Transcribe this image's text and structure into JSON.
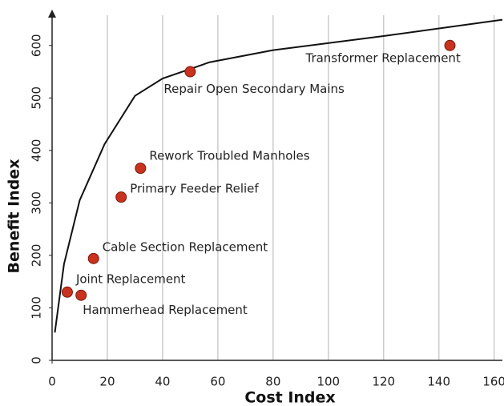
{
  "chart_data": {
    "type": "scatter",
    "x_label": "Cost Index",
    "y_label": "Benefit Index",
    "xlim": [
      0,
      163
    ],
    "ylim": [
      0,
      650
    ],
    "xticks": [
      0,
      20,
      40,
      60,
      80,
      100,
      120,
      140,
      160
    ],
    "yticks": [
      0,
      100,
      200,
      300,
      400,
      500,
      600
    ],
    "grid": true,
    "color": "#c8321e",
    "curve_color": "#111111",
    "curve": {
      "x": [
        1,
        4.3,
        10,
        19,
        30,
        40,
        57,
        80,
        120,
        163
      ],
      "values": [
        53,
        183,
        305,
        412,
        504,
        537,
        568,
        591,
        618,
        649
      ]
    },
    "labels": [
      "Transformer Replacement",
      "Repair Open Secondary Mains",
      "Rework Troubled Manholes",
      "Primary Feeder Relief",
      "Cable Section Replacement",
      "Joint Replacement",
      "Hammerhead Replacement"
    ],
    "x": [
      144,
      50,
      32,
      25,
      15,
      5.5,
      10.5
    ],
    "values": [
      600,
      550,
      366,
      311,
      194,
      130,
      124
    ]
  }
}
